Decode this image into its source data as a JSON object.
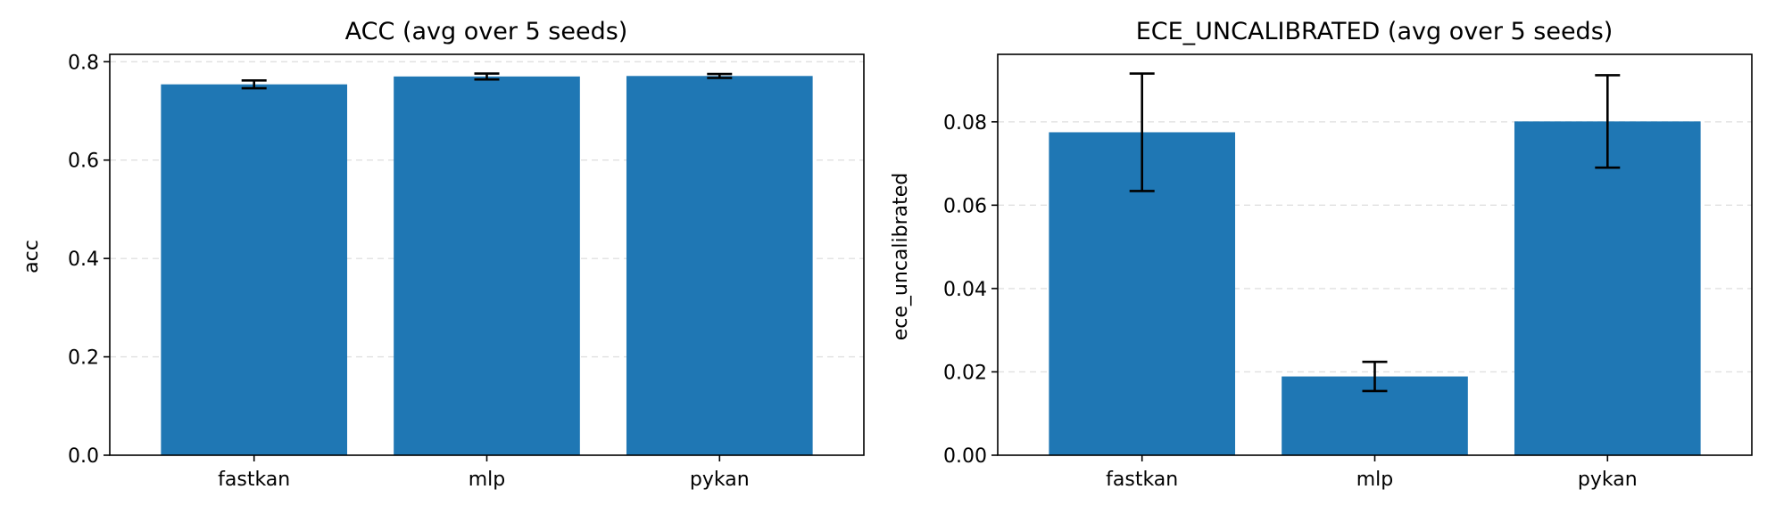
{
  "chart_data": [
    {
      "type": "bar",
      "title": "ACC (avg over 5 seeds)",
      "xlabel": "",
      "ylabel": "acc",
      "categories": [
        "fastkan",
        "mlp",
        "pykan"
      ],
      "values": [
        0.754,
        0.77,
        0.771
      ],
      "errors": [
        0.008,
        0.006,
        0.004
      ],
      "ylim": [
        0,
        0.815
      ],
      "yticks": [
        0.0,
        0.2,
        0.4,
        0.6,
        0.8
      ],
      "ytick_labels": [
        "0.0",
        "0.2",
        "0.4",
        "0.6",
        "0.8"
      ],
      "grid": "y",
      "bar_color": "#1f77b4"
    },
    {
      "type": "bar",
      "title": "ECE_UNCALIBRATED (avg over 5 seeds)",
      "xlabel": "",
      "ylabel": "ece_uncalibrated",
      "categories": [
        "fastkan",
        "mlp",
        "pykan"
      ],
      "values": [
        0.0775,
        0.0189,
        0.0801
      ],
      "errors": [
        0.0141,
        0.0035,
        0.0111
      ],
      "ylim": [
        0,
        0.0962
      ],
      "yticks": [
        0.0,
        0.02,
        0.04,
        0.06,
        0.08
      ],
      "ytick_labels": [
        "0.00",
        "0.02",
        "0.04",
        "0.06",
        "0.08"
      ],
      "grid": "y",
      "bar_color": "#1f77b4"
    }
  ]
}
